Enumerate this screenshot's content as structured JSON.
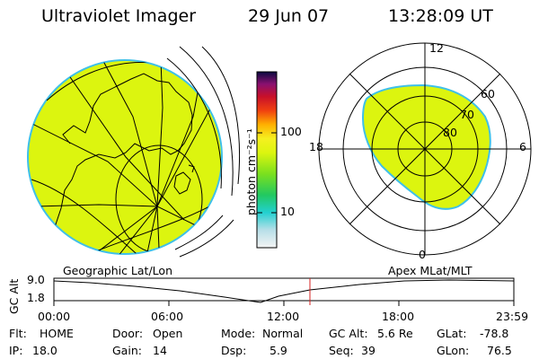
{
  "header": {
    "instrument": "Ultraviolet Imager",
    "date": "29 Jun 07",
    "time": "13:28:09 UT"
  },
  "colorbar": {
    "unit_label": "photon cm⁻²s⁻¹",
    "tick_100": "100",
    "tick_10": "10"
  },
  "polar_plot": {
    "mlt_top": "12",
    "mlt_bottom": "0",
    "mlt_left": "18",
    "mlt_right": "6",
    "lat_60": "60",
    "lat_70": "70",
    "lat_80": "80"
  },
  "map_labels": {
    "left": "Geographic Lat/Lon",
    "right": "Apex MLat/MLT"
  },
  "altitude_plot": {
    "ylabel": "GC Alt",
    "y_top": "9.0",
    "y_bottom": "1.8",
    "x_ticks": [
      "00:00",
      "06:00",
      "12:00",
      "18:00",
      "23:59"
    ]
  },
  "info": {
    "flt_label": "Flt:",
    "flt_value": "HOME",
    "ip_label": "IP:",
    "ip_value": "18.0",
    "door_label": "Door:",
    "door_value": "Open",
    "gain_label": "Gain:",
    "gain_value": "14",
    "mode_label": "Mode:",
    "mode_value": "Normal",
    "dsp_label": "Dsp:",
    "dsp_value": "5.9",
    "gcalt_label": "GC Alt:",
    "gcalt_value": "5.6 Re",
    "seq_label": "Seq:",
    "seq_value": "39",
    "glat_label": "GLat:",
    "glat_value": "-78.8",
    "glon_label": "GLon:",
    "glon_value": "76.5"
  },
  "colors": {
    "image_fill": "#dcf50f",
    "marker": "#d42020"
  }
}
